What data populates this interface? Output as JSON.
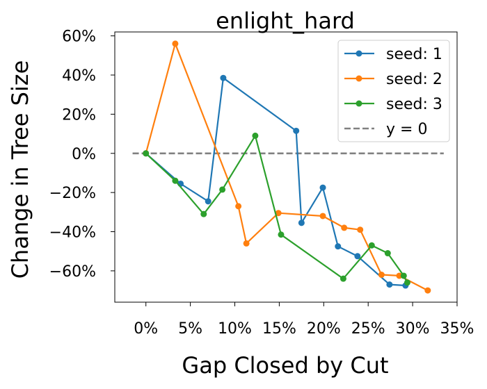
{
  "chart_data": {
    "type": "line",
    "title": "enlight_hard",
    "xlabel": "Gap Closed by Cut",
    "ylabel": "Change in Tree Size",
    "xlim": [
      -3.5,
      35
    ],
    "ylim": [
      -76,
      62
    ],
    "x_ticks": [
      0,
      5,
      10,
      15,
      20,
      25,
      30,
      35
    ],
    "x_tick_labels": [
      "0%",
      "5%",
      "10%",
      "15%",
      "20%",
      "25%",
      "30%",
      "35%"
    ],
    "y_ticks": [
      60,
      40,
      20,
      0,
      -20,
      -40,
      -60
    ],
    "y_tick_labels": [
      "60%",
      "40%",
      "20%",
      "0%",
      "−20%",
      "−40%",
      "−60%"
    ],
    "grid": false,
    "legend_position": "top-right",
    "series": [
      {
        "name": "seed: 1",
        "color": "#1f77b4",
        "x": [
          0,
          3.9,
          7.0,
          8.7,
          16.9,
          17.5,
          19.9,
          21.6,
          23.8,
          27.4,
          29.2
        ],
        "y": [
          0,
          -15.5,
          -24.5,
          38.5,
          11.5,
          -35.5,
          -17.5,
          -47.5,
          -52.5,
          -67,
          -67.5
        ]
      },
      {
        "name": "seed: 2",
        "color": "#ff7f0e",
        "x": [
          0,
          3.3,
          10.4,
          11.3,
          14.9,
          19.9,
          22.3,
          24.1,
          26.5,
          28.5,
          31.7
        ],
        "y": [
          0,
          56,
          -27,
          -46,
          -30.5,
          -32,
          -38,
          -39,
          -62,
          -62.5,
          -70
        ]
      },
      {
        "name": "seed: 3",
        "color": "#2ca02c",
        "x": [
          0,
          3.3,
          6.5,
          8.6,
          12.3,
          15.2,
          22.2,
          25.4,
          27.2,
          29.0,
          29.4
        ],
        "y": [
          0,
          -14,
          -31,
          -18.5,
          9,
          -41.5,
          -64,
          -47,
          -51,
          -62.5,
          -66
        ]
      }
    ],
    "reference_line": {
      "name": "y = 0",
      "y": 0,
      "x_range": [
        -1.5,
        33.5
      ],
      "color": "#808080",
      "style": "dashed"
    }
  }
}
